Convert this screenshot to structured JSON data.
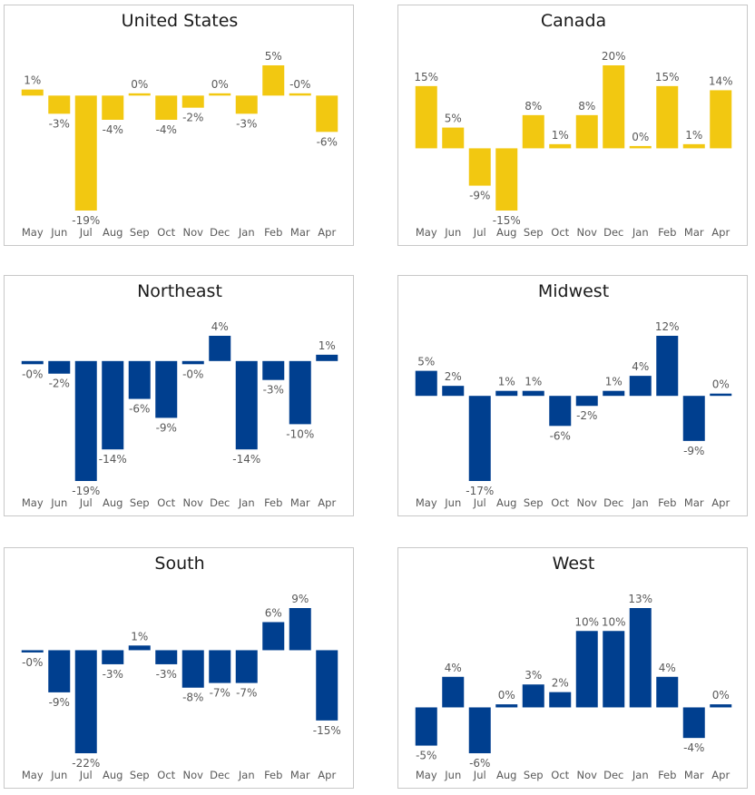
{
  "colors": {
    "gold": "#F2C811",
    "blue": "#003F8F"
  },
  "chart_data": [
    {
      "type": "bar",
      "title": "United States",
      "color": "#F2C811",
      "categories": [
        "May",
        "Jun",
        "Jul",
        "Aug",
        "Sep",
        "Oct",
        "Nov",
        "Dec",
        "Jan",
        "Feb",
        "Mar",
        "Apr"
      ],
      "values": [
        1,
        -3,
        -19,
        -4,
        0,
        -4,
        -2,
        0,
        -3,
        5,
        0,
        -6
      ],
      "labels": [
        "1%",
        "-3%",
        "-19%",
        "-4%",
        "0%",
        "-4%",
        "-2%",
        "0%",
        "-3%",
        "5%",
        "-0%",
        "-6%"
      ],
      "xlabel": "",
      "ylabel": "",
      "grid": false
    },
    {
      "type": "bar",
      "title": "Canada",
      "color": "#F2C811",
      "categories": [
        "May",
        "Jun",
        "Jul",
        "Aug",
        "Sep",
        "Oct",
        "Nov",
        "Dec",
        "Jan",
        "Feb",
        "Mar",
        "Apr"
      ],
      "values": [
        15,
        5,
        -9,
        -15,
        8,
        1,
        8,
        20,
        0,
        15,
        1,
        14
      ],
      "labels": [
        "15%",
        "5%",
        "-9%",
        "-15%",
        "8%",
        "1%",
        "8%",
        "20%",
        "0%",
        "15%",
        "1%",
        "14%"
      ],
      "xlabel": "",
      "ylabel": "",
      "grid": false
    },
    {
      "type": "bar",
      "title": "Northeast",
      "color": "#003F8F",
      "categories": [
        "May",
        "Jun",
        "Jul",
        "Aug",
        "Sep",
        "Oct",
        "Nov",
        "Dec",
        "Jan",
        "Feb",
        "Mar",
        "Apr"
      ],
      "values": [
        -0.5,
        -2,
        -19,
        -14,
        -6,
        -9,
        -0.5,
        4,
        -14,
        -3,
        -10,
        1
      ],
      "labels": [
        "-0%",
        "-2%",
        "-19%",
        "-14%",
        "-6%",
        "-9%",
        "-0%",
        "4%",
        "-14%",
        "-3%",
        "-10%",
        "1%"
      ],
      "xlabel": "",
      "ylabel": "",
      "grid": false
    },
    {
      "type": "bar",
      "title": "Midwest",
      "color": "#003F8F",
      "categories": [
        "May",
        "Jun",
        "Jul",
        "Aug",
        "Sep",
        "Oct",
        "Nov",
        "Dec",
        "Jan",
        "Feb",
        "Mar",
        "Apr"
      ],
      "values": [
        5,
        2,
        -17,
        1,
        1,
        -6,
        -2,
        1,
        4,
        12,
        -9,
        0.3
      ],
      "labels": [
        "5%",
        "2%",
        "-17%",
        "1%",
        "1%",
        "-6%",
        "-2%",
        "1%",
        "4%",
        "12%",
        "-9%",
        "0%"
      ],
      "xlabel": "",
      "ylabel": "",
      "grid": false
    },
    {
      "type": "bar",
      "title": "South",
      "color": "#003F8F",
      "categories": [
        "May",
        "Jun",
        "Jul",
        "Aug",
        "Sep",
        "Oct",
        "Nov",
        "Dec",
        "Jan",
        "Feb",
        "Mar",
        "Apr"
      ],
      "values": [
        -0.4,
        -9,
        -22,
        -3,
        1,
        -3,
        -8,
        -7,
        -7,
        6,
        9,
        -15
      ],
      "labels": [
        "-0%",
        "-9%",
        "-22%",
        "-3%",
        "1%",
        "-3%",
        "-8%",
        "-7%",
        "-7%",
        "6%",
        "9%",
        "-15%"
      ],
      "xlabel": "",
      "ylabel": "",
      "grid": false
    },
    {
      "type": "bar",
      "title": "West",
      "color": "#003F8F",
      "categories": [
        "May",
        "Jun",
        "Jul",
        "Aug",
        "Sep",
        "Oct",
        "Nov",
        "Dec",
        "Jan",
        "Feb",
        "Mar",
        "Apr"
      ],
      "values": [
        -5,
        4,
        -6,
        0.4,
        3,
        2,
        10,
        10,
        13,
        4,
        -4,
        0.4
      ],
      "labels": [
        "-5%",
        "4%",
        "-6%",
        "0%",
        "3%",
        "2%",
        "10%",
        "10%",
        "13%",
        "4%",
        "-4%",
        "0%"
      ],
      "xlabel": "",
      "ylabel": "",
      "grid": false
    }
  ]
}
